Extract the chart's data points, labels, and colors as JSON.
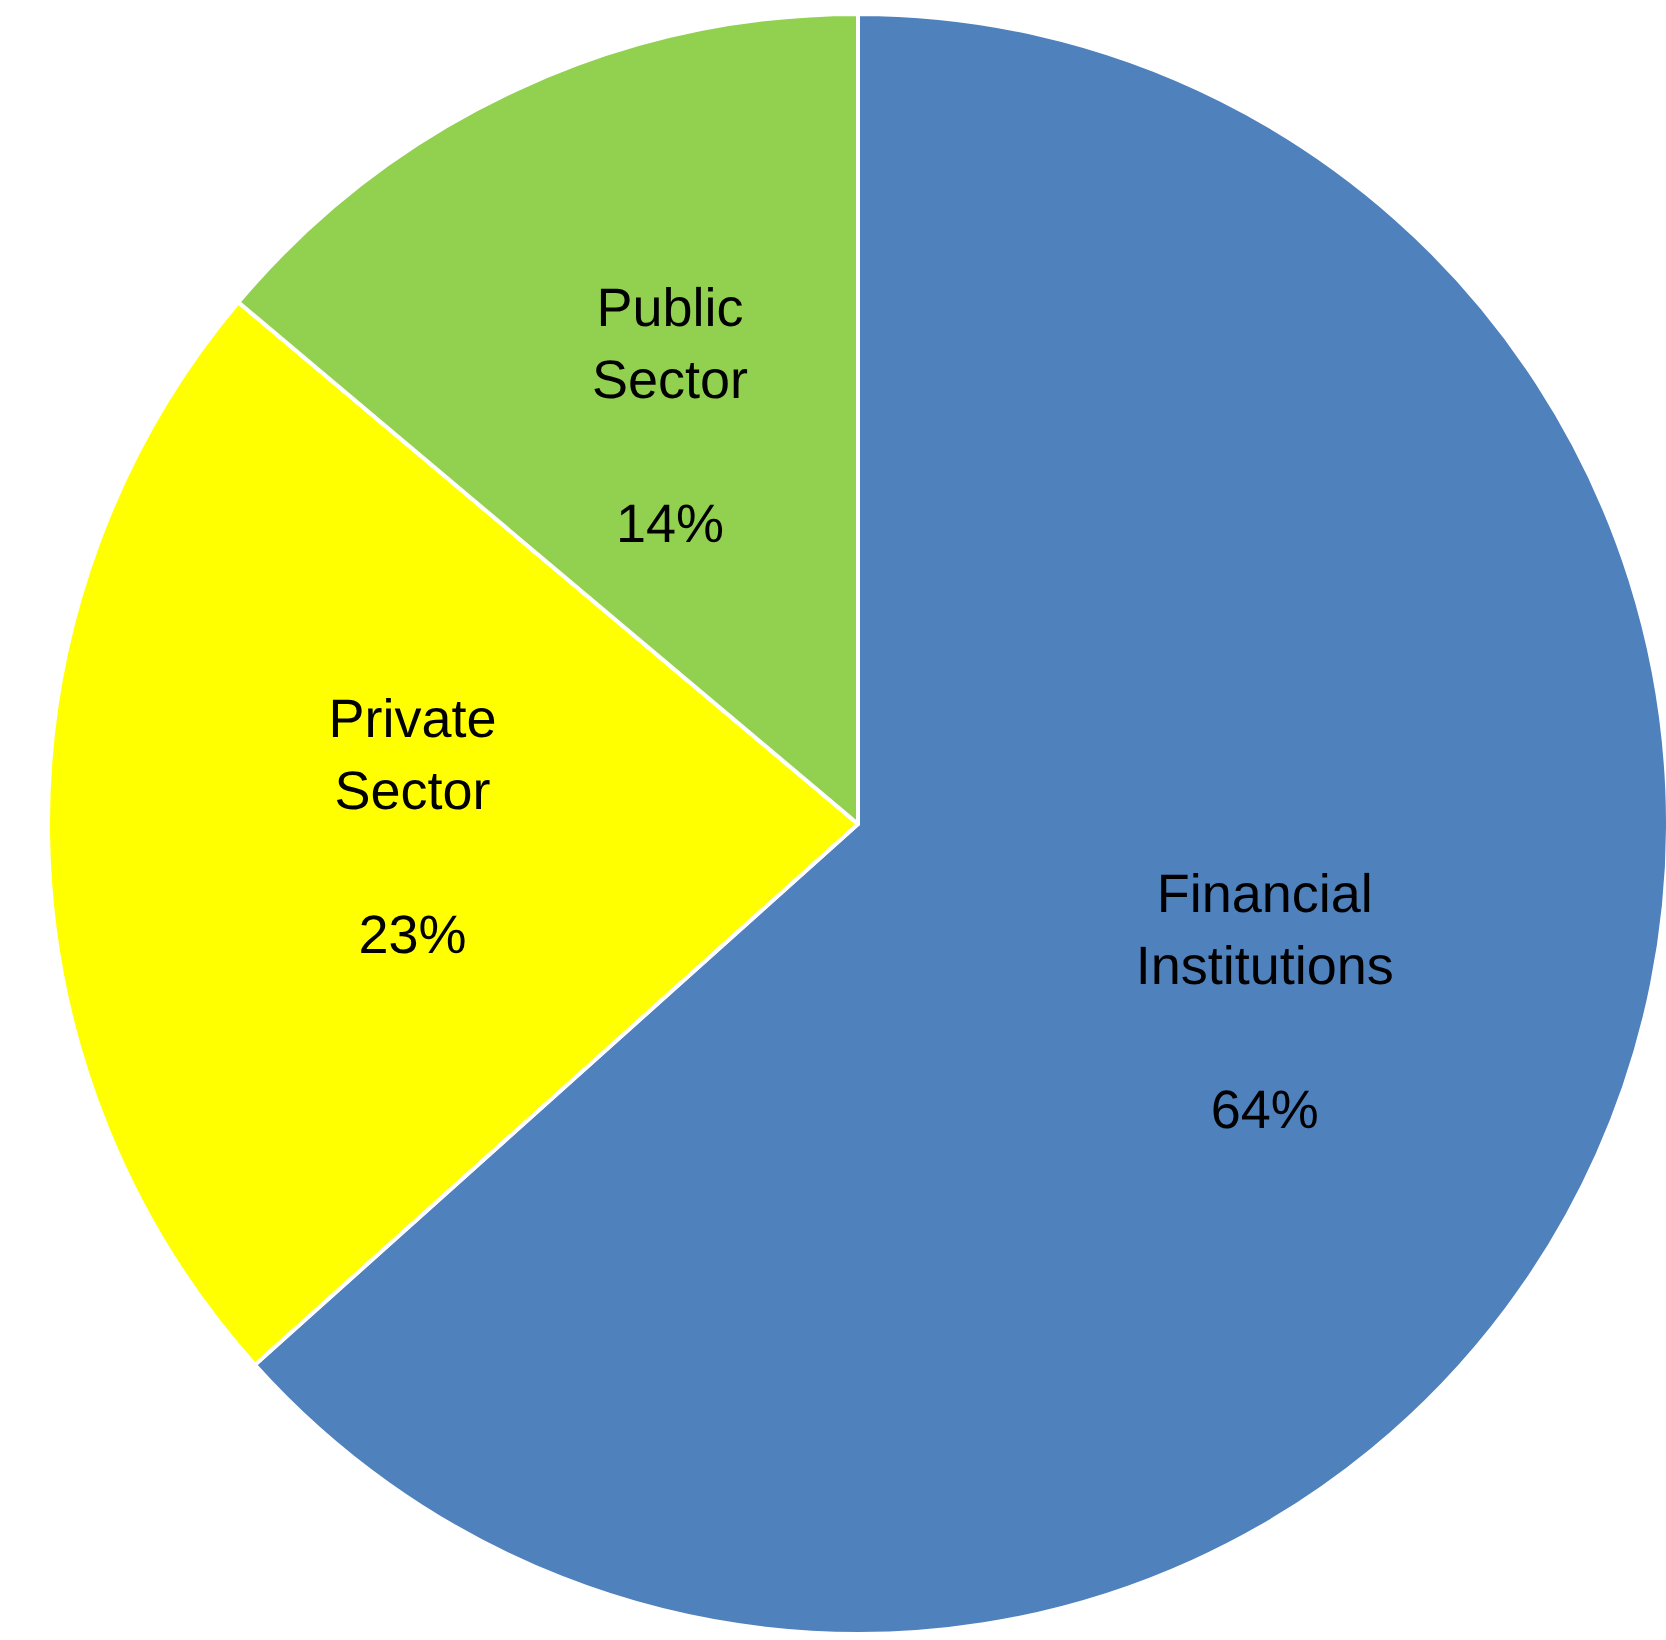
{
  "chart_data": {
    "type": "pie",
    "categories": [
      "Financial Institutions",
      "Private Sector",
      "Public Sector"
    ],
    "values": [
      64,
      23,
      14
    ],
    "value_labels": [
      "64%",
      "23%",
      "14%"
    ],
    "colors": [
      "#4f81bd",
      "#ffff00",
      "#92d050"
    ]
  }
}
